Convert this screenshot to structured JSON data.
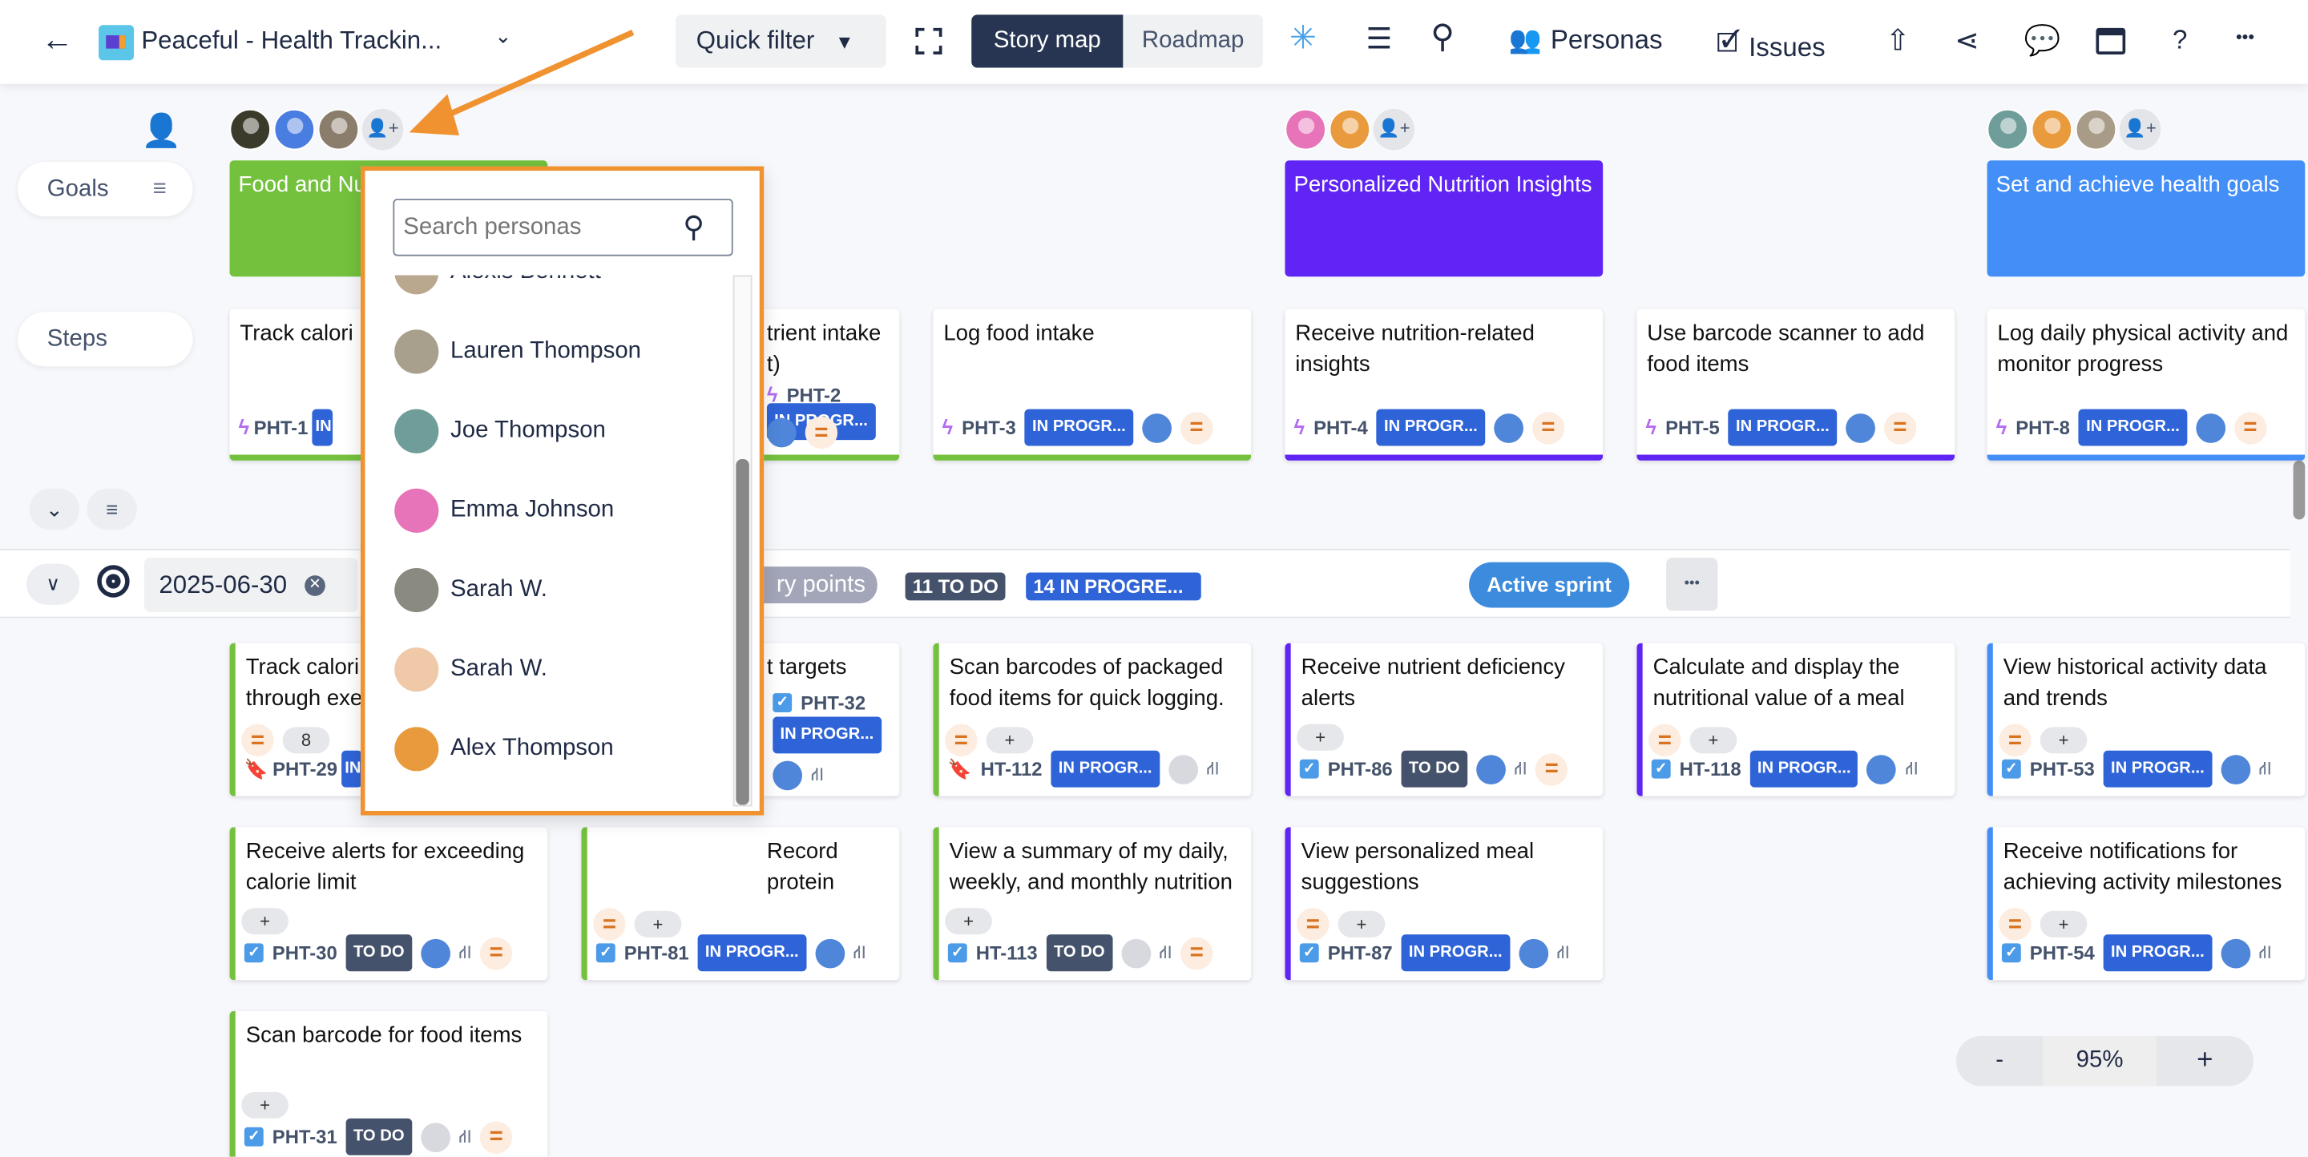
{
  "header": {
    "title": "Peaceful - Health Trackin...",
    "quick_filter": "Quick filter",
    "story_map": "Story map",
    "roadmap": "Roadmap",
    "personas": "Personas",
    "issues": "Issues",
    "help": "?",
    "more": "•••"
  },
  "rows": {
    "goals": "Goals",
    "steps": "Steps"
  },
  "goals": [
    {
      "title": "Food and Nu",
      "color": "#74c13e",
      "personas": [
        "#3b3b2b",
        "#4a7de0",
        "#8b7d6b"
      ]
    },
    {
      "title": "Personalized Nutrition Insights",
      "color": "#6025f5",
      "personas": [
        "#e773b8",
        "#e89a3c"
      ]
    },
    {
      "title": "Set and achieve health goals",
      "color": "#448ef7",
      "personas": [
        "#6f9e9a",
        "#e89a3c",
        "#a89b88"
      ]
    }
  ],
  "steps": [
    {
      "title": "Track calori",
      "key": "PHT-1",
      "status": "IN PROGR...",
      "color": "#74c13e"
    },
    {
      "title": "trient intake\nt)",
      "key": "PHT-2",
      "status": "IN PROGR...",
      "color": "#74c13e"
    },
    {
      "title": "Log food intake",
      "key": "PHT-3",
      "status": "IN PROGR...",
      "color": "#74c13e"
    },
    {
      "title": "Receive nutrition-related insights",
      "key": "PHT-4",
      "status": "IN PROGR...",
      "color": "#6025f5"
    },
    {
      "title": "Use barcode scanner to add food items",
      "key": "PHT-5",
      "status": "IN PROGR...",
      "color": "#6025f5"
    },
    {
      "title": "Log daily physical activity and monitor progress",
      "key": "PHT-8",
      "status": "IN PROGR...",
      "color": "#448ef7"
    }
  ],
  "sprint": {
    "date": "2025-06-30",
    "story_points": "ry points",
    "todo": "11 TO DO",
    "in_progress": "14 IN PROGRE...",
    "active": "Active sprint",
    "more": "•••"
  },
  "stories": [
    {
      "step": 0,
      "row": 0,
      "title": "Track calori\nthrough exe",
      "key": "PHT-29",
      "type": "bookmark",
      "status": "IN...",
      "prio": true,
      "points": "8"
    },
    {
      "step": 1,
      "row": 0,
      "title": "t targets",
      "key": "PHT-32",
      "type": "check",
      "status": "IN PROGR...",
      "hier": true
    },
    {
      "step": 2,
      "row": 0,
      "title": "Scan barcodes of packaged food items for quick logging.",
      "key": "HT-112",
      "type": "bookmark",
      "status": "IN PROGR...",
      "prio": true,
      "plus": true,
      "gear": true,
      "hier": true
    },
    {
      "step": 3,
      "row": 0,
      "title": "Receive nutrient deficiency alerts",
      "key": "PHT-86",
      "type": "check",
      "status": "TO DO",
      "plus": true,
      "hier": true,
      "fprio": true
    },
    {
      "step": 4,
      "row": 0,
      "title": "Calculate and display the nutritional value of a meal based on scanned items",
      "key": "HT-118",
      "type": "check",
      "status": "IN PROGR...",
      "prio": true,
      "plus": true,
      "hier": true
    },
    {
      "step": 5,
      "row": 0,
      "title": "View historical activity data and trends",
      "key": "PHT-53",
      "type": "check",
      "status": "IN PROGR...",
      "prio": true,
      "plus": true,
      "hier": true
    },
    {
      "step": 0,
      "row": 1,
      "title": "Receive alerts for exceeding calorie limit",
      "key": "PHT-30",
      "type": "check",
      "status": "TO DO",
      "plus": true,
      "hier": true,
      "fprio": true
    },
    {
      "step": 1,
      "row": 1,
      "title": "Record protein consumption",
      "key": "PHT-81",
      "type": "check",
      "status": "IN PROGR...",
      "prio": true,
      "plus": true,
      "hier": true
    },
    {
      "step": 2,
      "row": 1,
      "title": "View a summary of my daily, weekly, and monthly nutrition intake for better",
      "key": "HT-113",
      "type": "check",
      "status": "TO DO",
      "plus": true,
      "gear": true,
      "hier": true,
      "fprio": true
    },
    {
      "step": 3,
      "row": 1,
      "title": "View personalized meal suggestions",
      "key": "PHT-87",
      "type": "check",
      "status": "IN PROGR...",
      "prio": true,
      "plus": true,
      "hier": true
    },
    {
      "step": 5,
      "row": 1,
      "title": "Receive notifications for achieving activity milestones",
      "key": "PHT-54",
      "type": "check",
      "status": "IN PROGR...",
      "prio": true,
      "plus": true,
      "hier": true
    },
    {
      "step": 0,
      "row": 2,
      "title": "Scan barcode for food items",
      "key": "PHT-31",
      "type": "check",
      "status": "TO DO",
      "plus": true,
      "gear": true,
      "hier": true,
      "fprio": true
    }
  ],
  "persona_dropdown": {
    "placeholder": "Search personas",
    "items": [
      {
        "name": "Alexis Bennett",
        "color": "#b9a78e"
      },
      {
        "name": "Lauren Thompson",
        "color": "#a8a08c"
      },
      {
        "name": "Joe Thompson",
        "color": "#6f9e9a"
      },
      {
        "name": "Emma Johnson",
        "color": "#e773b8"
      },
      {
        "name": "Sarah W.",
        "color": "#8a8a80"
      },
      {
        "name": "Sarah W.",
        "color": "#f0c9a8"
      },
      {
        "name": "Alex Thompson",
        "color": "#e89a3c"
      }
    ]
  },
  "zoom": {
    "minus": "-",
    "value": "95%",
    "plus": "+"
  },
  "colors": {
    "todo": "#44526b",
    "in_progress": "#2f64d8",
    "accent": "#f0922f",
    "active_sprint": "#3d8bdc"
  }
}
